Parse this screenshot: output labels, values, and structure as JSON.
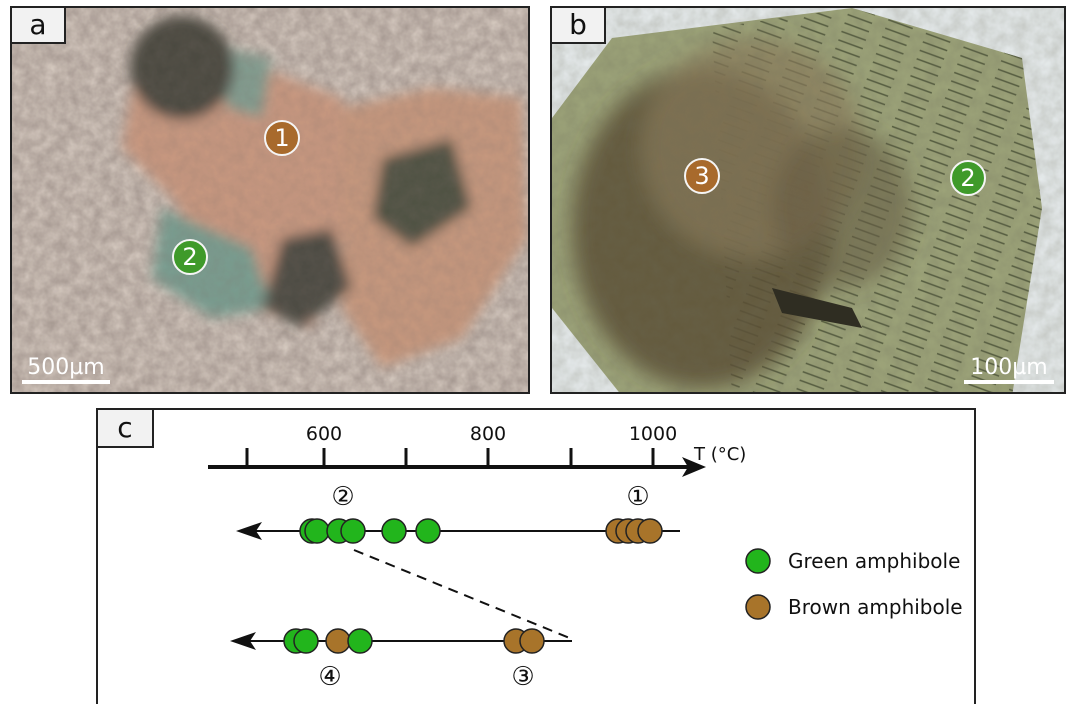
{
  "panel_a": {
    "label": "a",
    "scale": "500µm",
    "markers": [
      {
        "text": "1",
        "kind": "brown"
      },
      {
        "text": "2",
        "kind": "green"
      }
    ]
  },
  "panel_b": {
    "label": "b",
    "scale": "100µm",
    "markers": [
      {
        "text": "3",
        "kind": "brown"
      },
      {
        "text": "2",
        "kind": "green"
      }
    ]
  },
  "panel_c": {
    "label": "c",
    "axis": {
      "ticks": [
        "600",
        "800",
        "1000"
      ],
      "label": "T (°C)"
    },
    "group_labels": [
      "②",
      "①",
      "③",
      "④"
    ],
    "legend": [
      {
        "label": "Green amphibole",
        "color": "#22b51c"
      },
      {
        "label": "Brown amphibole",
        "color": "#a8742a"
      }
    ]
  },
  "colors": {
    "green": "#22b51c",
    "brown": "#a8742a",
    "marker_green": "#3f9a2a",
    "marker_brown": "#a86a2c"
  }
}
